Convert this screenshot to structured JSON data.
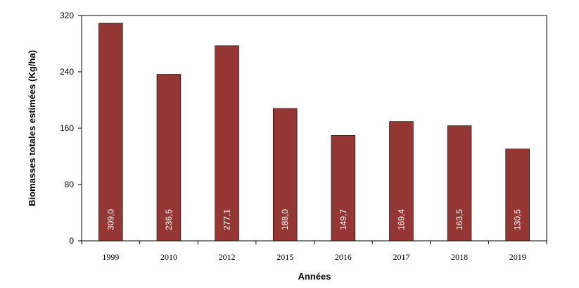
{
  "chart_data": {
    "type": "bar",
    "categories": [
      "1999",
      "2010",
      "2012",
      "2015",
      "2016",
      "2017",
      "2018",
      "2019"
    ],
    "values": [
      309.0,
      236.5,
      277.1,
      188.0,
      149.7,
      169.4,
      163.5,
      130.5
    ],
    "data_labels": [
      "309,0",
      "236,5",
      "277,1",
      "188,0",
      "149,7",
      "169,4",
      "163,5",
      "130,5"
    ],
    "y_ticks": [
      0,
      80,
      160,
      240,
      320
    ],
    "ylim": [
      0,
      320
    ],
    "xlabel": "Années",
    "ylabel": "Biomasses totales estimées (Kg/ha)",
    "grid": false,
    "legend": "none",
    "colors": {
      "bar": "#943634",
      "bar_stroke": "#000000",
      "axis": "#000000",
      "label": "#ffffff"
    }
  }
}
